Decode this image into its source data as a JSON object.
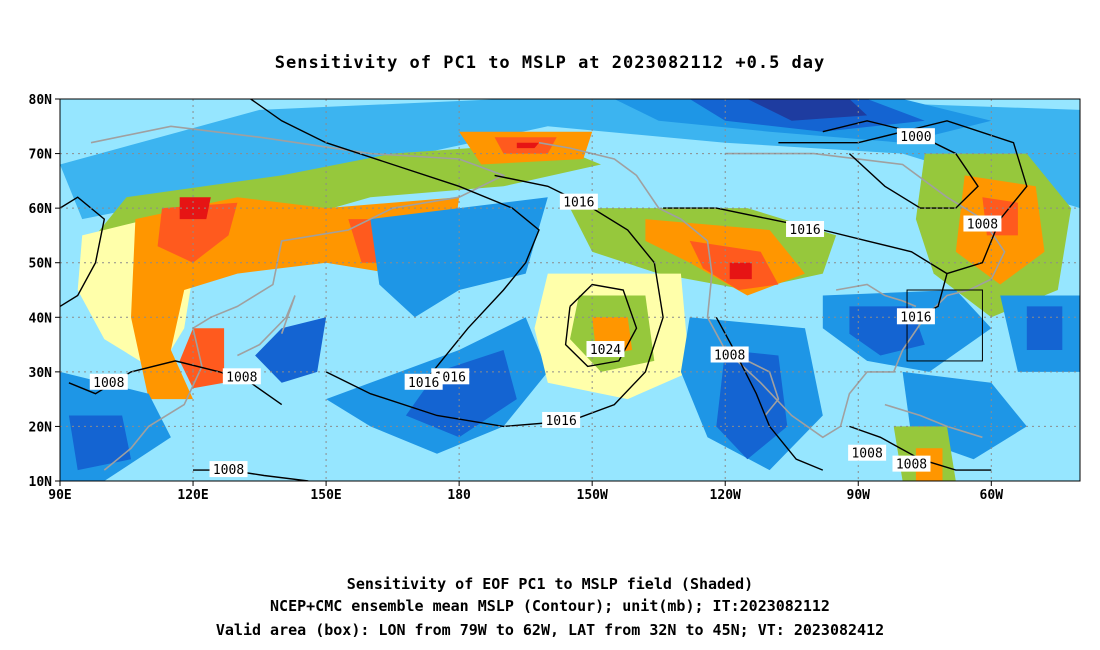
{
  "title": "Sensitivity of PC1 to MSLP at 2023082112 +0.5 day",
  "lat_ticks": [
    {
      "label": "80N",
      "lat": 80
    },
    {
      "label": "70N",
      "lat": 70
    },
    {
      "label": "60N",
      "lat": 60
    },
    {
      "label": "50N",
      "lat": 50
    },
    {
      "label": "40N",
      "lat": 40
    },
    {
      "label": "30N",
      "lat": 30
    },
    {
      "label": "20N",
      "lat": 20
    },
    {
      "label": "10N",
      "lat": 10
    }
  ],
  "lon_ticks": [
    {
      "label": "90E",
      "lon": 90
    },
    {
      "label": "120E",
      "lon": 120
    },
    {
      "label": "150E",
      "lon": 150
    },
    {
      "label": "180",
      "lon": 180
    },
    {
      "label": "150W",
      "lon": 210
    },
    {
      "label": "120W",
      "lon": 240
    },
    {
      "label": "90W",
      "lon": 270
    },
    {
      "label": "60W",
      "lon": 300
    }
  ],
  "map_extent": {
    "lon_min": 90,
    "lon_max": 320,
    "lat_min": 10,
    "lat_max": 80
  },
  "valid_box": {
    "lon_min": 281,
    "lon_max": 298,
    "lat_min": 32,
    "lat_max": 45
  },
  "contour_labels": [
    {
      "text": "1000",
      "lon": 283,
      "lat": 73
    },
    {
      "text": "1008",
      "lon": 298,
      "lat": 57
    },
    {
      "text": "1016",
      "lon": 207,
      "lat": 61
    },
    {
      "text": "1016",
      "lon": 258,
      "lat": 56
    },
    {
      "text": "1016",
      "lon": 283,
      "lat": 40
    },
    {
      "text": "1024",
      "lon": 213,
      "lat": 34
    },
    {
      "text": "1008",
      "lon": 241,
      "lat": 33
    },
    {
      "text": "1016",
      "lon": 178,
      "lat": 29
    },
    {
      "text": "1016",
      "lon": 203,
      "lat": 21
    },
    {
      "text": "1008",
      "lon": 101,
      "lat": 28
    },
    {
      "text": "1008",
      "lon": 131,
      "lat": 29
    },
    {
      "text": "1008",
      "lon": 272,
      "lat": 15
    },
    {
      "text": "1008",
      "lon": 282,
      "lat": 13
    },
    {
      "text": "1008",
      "lon": 128,
      "lat": 12
    },
    {
      "text": "1016",
      "lon": 172,
      "lat": 28
    }
  ],
  "colors": {
    "strong_neg": "#1e3ca0",
    "neg2": "#1464d2",
    "neg3": "#1e96e6",
    "neg4": "#3cb4f0",
    "neg5": "#96e6ff",
    "neutral": "#ffffff",
    "pos1": "#ffffaa",
    "pos2": "#96c83c",
    "pos3": "#ff9600",
    "pos4": "#ff5a1e",
    "strong_pos": "#e61414",
    "coastline": "#a0a0a0",
    "contour": "#000000",
    "grid": "#8c8c8c"
  },
  "caption": [
    "Sensitivity of EOF PC1 to MSLP field (Shaded)",
    "NCEP+CMC ensemble mean MSLP (Contour); unit(mb); IT:2023082112",
    "Valid area (box): LON from 79W to 62W, LAT from 32N to 45N; VT: 2023082412"
  ]
}
